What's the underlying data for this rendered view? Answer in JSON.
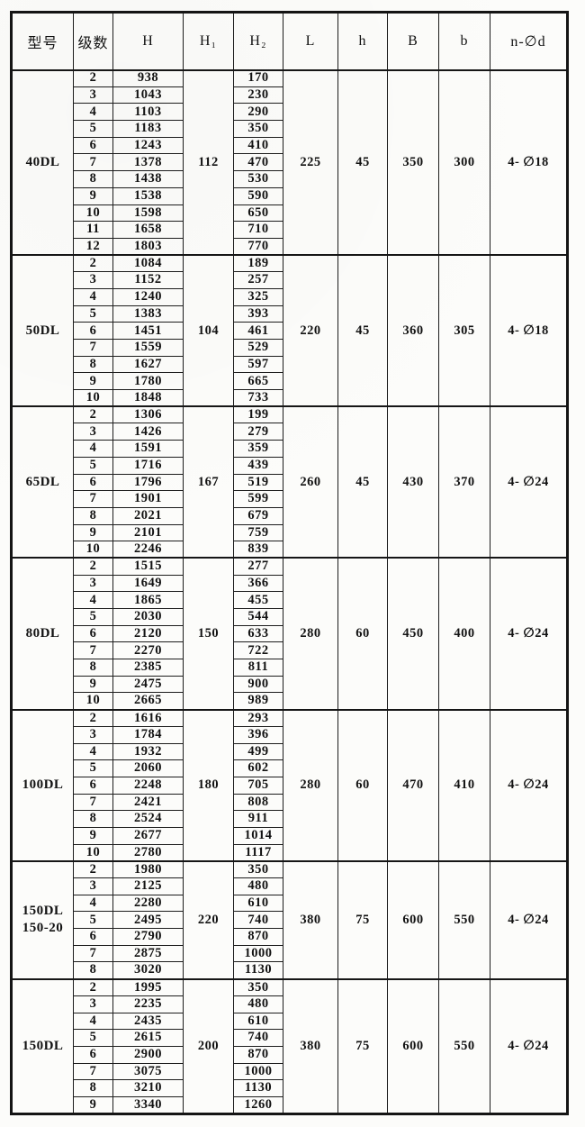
{
  "table": {
    "columns": [
      "型号",
      "级数",
      "H",
      "H₁",
      "H₂",
      "L",
      "h",
      "B",
      "b",
      "n-∅d"
    ],
    "column_keys": [
      "model",
      "stages",
      "H",
      "H1",
      "H2",
      "L",
      "h",
      "B",
      "b",
      "n-phi-d"
    ],
    "groups": [
      {
        "model": [
          "40DL"
        ],
        "H1": "112",
        "L": "225",
        "h": "45",
        "B": "350",
        "b": "300",
        "n_phi_d": "4- ∅18",
        "rows": [
          {
            "stages": "2",
            "H": "938",
            "H2": "170"
          },
          {
            "stages": "3",
            "H": "1043",
            "H2": "230"
          },
          {
            "stages": "4",
            "H": "1103",
            "H2": "290"
          },
          {
            "stages": "5",
            "H": "1183",
            "H2": "350"
          },
          {
            "stages": "6",
            "H": "1243",
            "H2": "410"
          },
          {
            "stages": "7",
            "H": "1378",
            "H2": "470"
          },
          {
            "stages": "8",
            "H": "1438",
            "H2": "530"
          },
          {
            "stages": "9",
            "H": "1538",
            "H2": "590"
          },
          {
            "stages": "10",
            "H": "1598",
            "H2": "650"
          },
          {
            "stages": "11",
            "H": "1658",
            "H2": "710"
          },
          {
            "stages": "12",
            "H": "1803",
            "H2": "770"
          }
        ]
      },
      {
        "model": [
          "50DL"
        ],
        "H1": "104",
        "L": "220",
        "h": "45",
        "B": "360",
        "b": "305",
        "n_phi_d": "4- ∅18",
        "rows": [
          {
            "stages": "2",
            "H": "1084",
            "H2": "189"
          },
          {
            "stages": "3",
            "H": "1152",
            "H2": "257"
          },
          {
            "stages": "4",
            "H": "1240",
            "H2": "325"
          },
          {
            "stages": "5",
            "H": "1383",
            "H2": "393"
          },
          {
            "stages": "6",
            "H": "1451",
            "H2": "461"
          },
          {
            "stages": "7",
            "H": "1559",
            "H2": "529"
          },
          {
            "stages": "8",
            "H": "1627",
            "H2": "597"
          },
          {
            "stages": "9",
            "H": "1780",
            "H2": "665"
          },
          {
            "stages": "10",
            "H": "1848",
            "H2": "733"
          }
        ]
      },
      {
        "model": [
          "65DL"
        ],
        "H1": "167",
        "L": "260",
        "h": "45",
        "B": "430",
        "b": "370",
        "n_phi_d": "4- ∅24",
        "rows": [
          {
            "stages": "2",
            "H": "1306",
            "H2": "199"
          },
          {
            "stages": "3",
            "H": "1426",
            "H2": "279"
          },
          {
            "stages": "4",
            "H": "1591",
            "H2": "359"
          },
          {
            "stages": "5",
            "H": "1716",
            "H2": "439"
          },
          {
            "stages": "6",
            "H": "1796",
            "H2": "519"
          },
          {
            "stages": "7",
            "H": "1901",
            "H2": "599"
          },
          {
            "stages": "8",
            "H": "2021",
            "H2": "679"
          },
          {
            "stages": "9",
            "H": "2101",
            "H2": "759"
          },
          {
            "stages": "10",
            "H": "2246",
            "H2": "839"
          }
        ]
      },
      {
        "model": [
          "80DL"
        ],
        "H1": "150",
        "L": "280",
        "h": "60",
        "B": "450",
        "b": "400",
        "n_phi_d": "4- ∅24",
        "rows": [
          {
            "stages": "2",
            "H": "1515",
            "H2": "277"
          },
          {
            "stages": "3",
            "H": "1649",
            "H2": "366"
          },
          {
            "stages": "4",
            "H": "1865",
            "H2": "455"
          },
          {
            "stages": "5",
            "H": "2030",
            "H2": "544"
          },
          {
            "stages": "6",
            "H": "2120",
            "H2": "633"
          },
          {
            "stages": "7",
            "H": "2270",
            "H2": "722"
          },
          {
            "stages": "8",
            "H": "2385",
            "H2": "811"
          },
          {
            "stages": "9",
            "H": "2475",
            "H2": "900"
          },
          {
            "stages": "10",
            "H": "2665",
            "H2": "989"
          }
        ]
      },
      {
        "model": [
          "100DL"
        ],
        "H1": "180",
        "L": "280",
        "h": "60",
        "B": "470",
        "b": "410",
        "n_phi_d": "4- ∅24",
        "rows": [
          {
            "stages": "2",
            "H": "1616",
            "H2": "293"
          },
          {
            "stages": "3",
            "H": "1784",
            "H2": "396"
          },
          {
            "stages": "4",
            "H": "1932",
            "H2": "499"
          },
          {
            "stages": "5",
            "H": "2060",
            "H2": "602"
          },
          {
            "stages": "6",
            "H": "2248",
            "H2": "705"
          },
          {
            "stages": "7",
            "H": "2421",
            "H2": "808"
          },
          {
            "stages": "8",
            "H": "2524",
            "H2": "911"
          },
          {
            "stages": "9",
            "H": "2677",
            "H2": "1014"
          },
          {
            "stages": "10",
            "H": "2780",
            "H2": "1117"
          }
        ]
      },
      {
        "model": [
          "150DL",
          "150-20"
        ],
        "H1": "220",
        "L": "380",
        "h": "75",
        "B": "600",
        "b": "550",
        "n_phi_d": "4- ∅24",
        "rows": [
          {
            "stages": "2",
            "H": "1980",
            "H2": "350"
          },
          {
            "stages": "3",
            "H": "2125",
            "H2": "480"
          },
          {
            "stages": "4",
            "H": "2280",
            "H2": "610"
          },
          {
            "stages": "5",
            "H": "2495",
            "H2": "740"
          },
          {
            "stages": "6",
            "H": "2790",
            "H2": "870"
          },
          {
            "stages": "7",
            "H": "2875",
            "H2": "1000"
          },
          {
            "stages": "8",
            "H": "3020",
            "H2": "1130"
          }
        ]
      },
      {
        "model": [
          "150DL"
        ],
        "H1": "200",
        "L": "380",
        "h": "75",
        "B": "600",
        "b": "550",
        "n_phi_d": "4- ∅24",
        "rows": [
          {
            "stages": "2",
            "H": "1995",
            "H2": "350"
          },
          {
            "stages": "3",
            "H": "2235",
            "H2": "480"
          },
          {
            "stages": "4",
            "H": "2435",
            "H2": "610"
          },
          {
            "stages": "5",
            "H": "2615",
            "H2": "740"
          },
          {
            "stages": "6",
            "H": "2900",
            "H2": "870"
          },
          {
            "stages": "7",
            "H": "3075",
            "H2": "1000"
          },
          {
            "stages": "8",
            "H": "3210",
            "H2": "1130"
          },
          {
            "stages": "9",
            "H": "3340",
            "H2": "1260"
          }
        ]
      }
    ]
  }
}
